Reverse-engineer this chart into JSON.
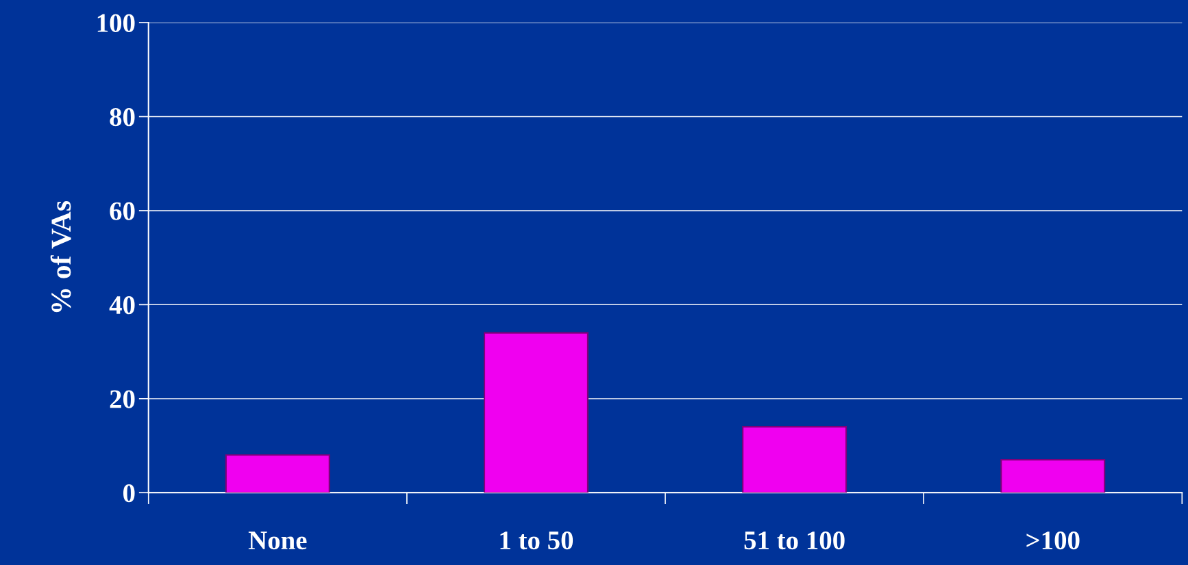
{
  "chart_data": {
    "type": "bar",
    "ylabel": "% of VAs",
    "categories": [
      "None",
      "1 to 50",
      "51 to 100",
      ">100"
    ],
    "values": [
      8,
      34,
      14,
      7
    ],
    "color": "#f000f0",
    "ylim": [
      0,
      100
    ],
    "yticks": [
      0,
      20,
      40,
      60,
      80,
      100
    ],
    "grid": "y",
    "legend": false
  }
}
